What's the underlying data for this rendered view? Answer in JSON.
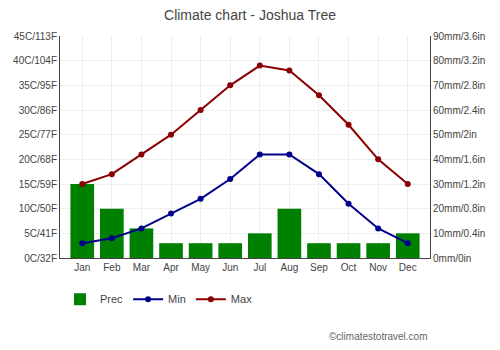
{
  "chart_data": {
    "type": "bar",
    "title": "Climate chart - Joshua Tree",
    "categories": [
      "Jan",
      "Feb",
      "Mar",
      "Apr",
      "May",
      "Jun",
      "Jul",
      "Aug",
      "Sep",
      "Oct",
      "Nov",
      "Dec"
    ],
    "series": [
      {
        "name": "Prec",
        "type": "bar",
        "axis": "y2",
        "color": "#008000",
        "values": [
          30,
          20,
          12,
          6,
          6,
          6,
          10,
          20,
          6,
          6,
          6,
          10
        ]
      },
      {
        "name": "Min",
        "type": "line",
        "marker": "circle",
        "color": "#00008B",
        "values": [
          3,
          4,
          6,
          9,
          12,
          16,
          21,
          21,
          17,
          11,
          6,
          3
        ]
      },
      {
        "name": "Max",
        "type": "line",
        "marker": "circle",
        "color": "#8B0000",
        "values": [
          15,
          17,
          21,
          25,
          30,
          35,
          39,
          38,
          33,
          27,
          20,
          15
        ]
      }
    ],
    "ylim": [
      0,
      45
    ],
    "yticks": [
      {
        "value": 0,
        "label": "0C/32F"
      },
      {
        "value": 5,
        "label": "5C/41F"
      },
      {
        "value": 10,
        "label": "10C/50F"
      },
      {
        "value": 15,
        "label": "15C/59F"
      },
      {
        "value": 20,
        "label": "20C/68F"
      },
      {
        "value": 25,
        "label": "25C/77F"
      },
      {
        "value": 30,
        "label": "30C/86F"
      },
      {
        "value": 35,
        "label": "35C/95F"
      },
      {
        "value": 40,
        "label": "40C/104F"
      },
      {
        "value": 45,
        "label": "45C/113F"
      }
    ],
    "y2lim": [
      0,
      90
    ],
    "y2ticks": [
      {
        "value": 0,
        "label": "0mm/0in"
      },
      {
        "value": 10,
        "label": "10mm/0.4in"
      },
      {
        "value": 20,
        "label": "20mm/0.8in"
      },
      {
        "value": 30,
        "label": "30mm/1.2in"
      },
      {
        "value": 40,
        "label": "40mm/1.6in"
      },
      {
        "value": 50,
        "label": "50mm/2in"
      },
      {
        "value": 60,
        "label": "60mm/2.4in"
      },
      {
        "value": 70,
        "label": "70mm/2.8in"
      },
      {
        "value": 80,
        "label": "80mm/3.2in"
      },
      {
        "value": 90,
        "label": "90mm/3.6in"
      }
    ],
    "grid": true,
    "legend": "bottom",
    "annotations": [
      "©climatestotravel.com"
    ]
  }
}
